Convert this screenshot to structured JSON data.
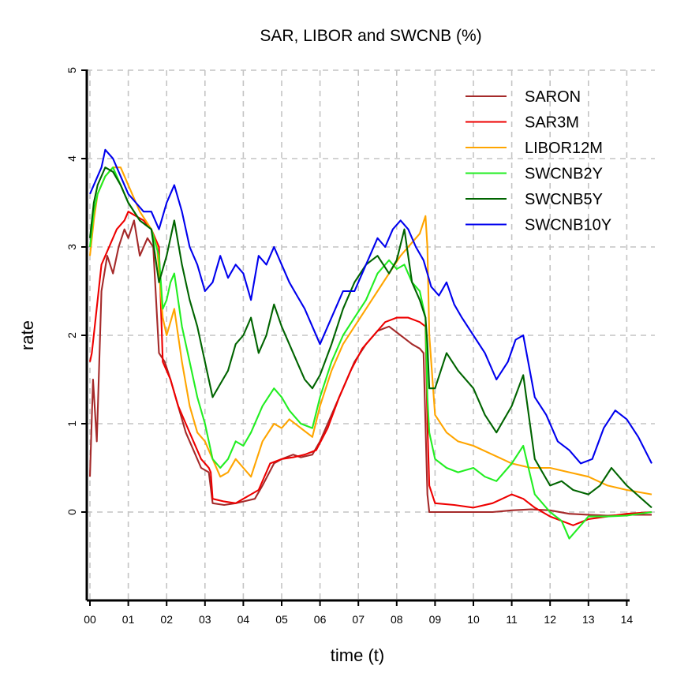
{
  "chart_data": {
    "type": "line",
    "title": "SAR, LIBOR and SWCNB (%)",
    "xlabel": "time (t)",
    "ylabel": "rate",
    "x_ticks": [
      "00",
      "01",
      "02",
      "03",
      "04",
      "05",
      "06",
      "07",
      "08",
      "09",
      "10",
      "11",
      "12",
      "13",
      "14"
    ],
    "y_ticks": [
      "0",
      "1",
      "2",
      "3",
      "4",
      "5"
    ],
    "xlim": [
      0,
      14.65
    ],
    "ylim": [
      -1,
      5
    ],
    "grid": true,
    "legend_position": "top-right",
    "series": [
      {
        "name": "SARON",
        "color": "#a52a2a",
        "x": [
          0,
          0.08,
          0.18,
          0.3,
          0.45,
          0.6,
          0.75,
          0.9,
          1.0,
          1.15,
          1.3,
          1.5,
          1.65,
          1.8,
          1.95,
          2.1,
          2.3,
          2.5,
          2.7,
          2.9,
          3.1,
          3.2,
          3.5,
          3.8,
          4.0,
          4.3,
          4.5,
          4.8,
          5.0,
          5.3,
          5.5,
          5.8,
          6.0,
          6.3,
          6.6,
          6.9,
          7.2,
          7.5,
          7.8,
          8.1,
          8.4,
          8.6,
          8.7,
          8.8,
          8.85,
          9.0,
          9.5,
          10.0,
          10.5,
          11.0,
          11.5,
          12.0,
          12.5,
          13.0,
          13.5,
          14.0,
          14.65
        ],
        "y": [
          0.4,
          1.5,
          0.8,
          2.5,
          2.9,
          2.7,
          3.0,
          3.2,
          3.1,
          3.3,
          2.9,
          3.1,
          3.0,
          1.8,
          1.7,
          1.5,
          1.2,
          0.9,
          0.7,
          0.5,
          0.45,
          0.1,
          0.08,
          0.1,
          0.12,
          0.15,
          0.3,
          0.55,
          0.6,
          0.65,
          0.62,
          0.65,
          0.8,
          1.1,
          1.4,
          1.7,
          1.9,
          2.05,
          2.1,
          2.0,
          1.9,
          1.85,
          1.8,
          0.2,
          0.0,
          0.0,
          0.0,
          0.0,
          0.0,
          0.02,
          0.03,
          0.02,
          -0.02,
          -0.03,
          -0.04,
          -0.03,
          -0.03
        ]
      },
      {
        "name": "SAR3M",
        "color": "#ee0000",
        "x": [
          0,
          0.05,
          0.15,
          0.3,
          0.5,
          0.7,
          0.9,
          1.0,
          1.2,
          1.4,
          1.6,
          1.7,
          1.8,
          1.9,
          2.1,
          2.3,
          2.5,
          2.7,
          2.9,
          3.1,
          3.15,
          3.2,
          3.5,
          3.8,
          4.0,
          4.2,
          4.4,
          4.7,
          5.0,
          5.3,
          5.6,
          5.9,
          6.2,
          6.5,
          6.8,
          7.1,
          7.4,
          7.7,
          8.0,
          8.3,
          8.6,
          8.75,
          8.8,
          8.85,
          9.0,
          9.5,
          10.0,
          10.5,
          11.0,
          11.3,
          11.6,
          12.0,
          12.3,
          12.6,
          13.0,
          13.5,
          14.0,
          14.65
        ],
        "y": [
          1.7,
          1.8,
          2.2,
          2.8,
          3.0,
          3.2,
          3.3,
          3.4,
          3.35,
          3.3,
          3.2,
          3.1,
          3.0,
          1.7,
          1.5,
          1.2,
          1.0,
          0.8,
          0.6,
          0.5,
          0.45,
          0.15,
          0.12,
          0.1,
          0.15,
          0.2,
          0.25,
          0.55,
          0.6,
          0.62,
          0.65,
          0.7,
          0.95,
          1.3,
          1.6,
          1.85,
          2.0,
          2.15,
          2.2,
          2.2,
          2.15,
          2.1,
          1.0,
          0.3,
          0.1,
          0.08,
          0.05,
          0.1,
          0.2,
          0.15,
          0.05,
          -0.05,
          -0.1,
          -0.15,
          -0.08,
          -0.05,
          -0.02,
          0.0
        ]
      },
      {
        "name": "LIBOR12M",
        "color": "#ffa500",
        "x": [
          0,
          0.1,
          0.2,
          0.4,
          0.6,
          0.8,
          1.0,
          1.3,
          1.6,
          1.75,
          1.9,
          2.0,
          2.2,
          2.4,
          2.6,
          2.8,
          3.0,
          3.2,
          3.4,
          3.6,
          3.8,
          4.0,
          4.2,
          4.5,
          4.8,
          5.0,
          5.2,
          5.5,
          5.8,
          6.0,
          6.3,
          6.6,
          6.9,
          7.2,
          7.5,
          7.8,
          8.1,
          8.4,
          8.6,
          8.75,
          8.8,
          8.85,
          9.0,
          9.3,
          9.6,
          10.0,
          10.5,
          11.0,
          11.5,
          12.0,
          12.5,
          13.0,
          13.5,
          14.0,
          14.65
        ],
        "y": [
          2.9,
          3.3,
          3.6,
          3.8,
          3.9,
          3.9,
          3.7,
          3.4,
          3.2,
          3.0,
          2.2,
          2.0,
          2.3,
          1.7,
          1.2,
          0.9,
          0.8,
          0.6,
          0.4,
          0.45,
          0.6,
          0.5,
          0.4,
          0.8,
          1.0,
          0.95,
          1.05,
          0.95,
          0.85,
          1.2,
          1.6,
          1.9,
          2.1,
          2.3,
          2.5,
          2.7,
          2.9,
          3.05,
          3.15,
          3.35,
          3.0,
          2.0,
          1.1,
          0.9,
          0.8,
          0.75,
          0.65,
          0.55,
          0.5,
          0.5,
          0.45,
          0.4,
          0.3,
          0.25,
          0.2
        ]
      },
      {
        "name": "SWCNB2Y",
        "color": "#22ee22",
        "x": [
          0,
          0.1,
          0.2,
          0.4,
          0.6,
          0.8,
          1.0,
          1.3,
          1.6,
          1.8,
          1.9,
          2.0,
          2.1,
          2.2,
          2.4,
          2.6,
          2.8,
          3.0,
          3.2,
          3.4,
          3.6,
          3.8,
          4.0,
          4.2,
          4.5,
          4.8,
          5.0,
          5.2,
          5.5,
          5.8,
          6.0,
          6.3,
          6.6,
          6.9,
          7.2,
          7.5,
          7.8,
          8.0,
          8.2,
          8.4,
          8.6,
          8.75,
          8.8,
          8.85,
          9.0,
          9.3,
          9.6,
          10.0,
          10.3,
          10.6,
          11.0,
          11.3,
          11.6,
          12.0,
          12.3,
          12.5,
          12.7,
          13.0,
          13.5,
          14.0,
          14.65
        ],
        "y": [
          3.0,
          3.4,
          3.6,
          3.8,
          3.9,
          3.7,
          3.5,
          3.3,
          3.2,
          2.9,
          2.3,
          2.4,
          2.6,
          2.7,
          2.1,
          1.7,
          1.3,
          1.0,
          0.6,
          0.5,
          0.6,
          0.8,
          0.75,
          0.9,
          1.2,
          1.4,
          1.3,
          1.15,
          1.0,
          0.95,
          1.3,
          1.7,
          2.0,
          2.2,
          2.4,
          2.7,
          2.85,
          2.75,
          2.8,
          2.6,
          2.5,
          2.2,
          1.3,
          0.9,
          0.6,
          0.5,
          0.45,
          0.5,
          0.4,
          0.35,
          0.55,
          0.75,
          0.2,
          0.0,
          -0.1,
          -0.3,
          -0.2,
          -0.05,
          -0.05,
          -0.04,
          0.0
        ]
      },
      {
        "name": "SWCNB5Y",
        "color": "#006400",
        "x": [
          0,
          0.1,
          0.2,
          0.4,
          0.6,
          0.8,
          1.0,
          1.3,
          1.6,
          1.8,
          2.0,
          2.2,
          2.4,
          2.6,
          2.8,
          3.0,
          3.2,
          3.4,
          3.6,
          3.8,
          4.0,
          4.2,
          4.4,
          4.6,
          4.8,
          5.0,
          5.2,
          5.4,
          5.6,
          5.8,
          6.0,
          6.3,
          6.6,
          6.9,
          7.2,
          7.5,
          7.8,
          8.0,
          8.2,
          8.4,
          8.6,
          8.75,
          8.8,
          8.85,
          9.0,
          9.3,
          9.6,
          10.0,
          10.3,
          10.6,
          11.0,
          11.3,
          11.6,
          12.0,
          12.3,
          12.6,
          13.0,
          13.3,
          13.6,
          14.0,
          14.65
        ],
        "y": [
          3.1,
          3.5,
          3.7,
          3.9,
          3.85,
          3.7,
          3.5,
          3.3,
          3.2,
          2.6,
          2.9,
          3.3,
          2.8,
          2.4,
          2.1,
          1.7,
          1.3,
          1.45,
          1.6,
          1.9,
          2.0,
          2.2,
          1.8,
          2.0,
          2.35,
          2.1,
          1.9,
          1.7,
          1.5,
          1.4,
          1.55,
          1.9,
          2.3,
          2.6,
          2.8,
          2.9,
          2.7,
          2.85,
          3.2,
          2.6,
          2.4,
          2.2,
          1.9,
          1.4,
          1.4,
          1.8,
          1.6,
          1.4,
          1.1,
          0.9,
          1.2,
          1.55,
          0.6,
          0.3,
          0.35,
          0.25,
          0.2,
          0.3,
          0.5,
          0.3,
          0.05
        ]
      },
      {
        "name": "SWCNB10Y",
        "color": "#0000ee",
        "x": [
          0,
          0.1,
          0.2,
          0.3,
          0.4,
          0.6,
          0.8,
          1.0,
          1.2,
          1.4,
          1.6,
          1.8,
          2.0,
          2.2,
          2.4,
          2.6,
          2.8,
          3.0,
          3.2,
          3.4,
          3.6,
          3.8,
          4.0,
          4.2,
          4.4,
          4.6,
          4.8,
          5.0,
          5.2,
          5.4,
          5.6,
          5.8,
          6.0,
          6.3,
          6.6,
          6.9,
          7.2,
          7.5,
          7.7,
          7.9,
          8.1,
          8.3,
          8.5,
          8.7,
          8.8,
          8.9,
          9.1,
          9.3,
          9.5,
          9.7,
          10.0,
          10.3,
          10.6,
          10.9,
          11.1,
          11.3,
          11.6,
          11.9,
          12.2,
          12.5,
          12.8,
          13.1,
          13.4,
          13.7,
          14.0,
          14.3,
          14.65
        ],
        "y": [
          3.6,
          3.7,
          3.8,
          3.9,
          4.1,
          4.0,
          3.8,
          3.6,
          3.5,
          3.4,
          3.4,
          3.2,
          3.5,
          3.7,
          3.4,
          3.0,
          2.8,
          2.5,
          2.6,
          2.9,
          2.65,
          2.8,
          2.7,
          2.4,
          2.9,
          2.8,
          3.0,
          2.8,
          2.6,
          2.45,
          2.3,
          2.1,
          1.9,
          2.2,
          2.5,
          2.5,
          2.8,
          3.1,
          3.0,
          3.2,
          3.3,
          3.2,
          3.0,
          2.85,
          2.7,
          2.55,
          2.45,
          2.6,
          2.35,
          2.2,
          2.0,
          1.8,
          1.5,
          1.7,
          1.95,
          2.0,
          1.3,
          1.1,
          0.8,
          0.7,
          0.55,
          0.6,
          0.95,
          1.15,
          1.05,
          0.85,
          0.55
        ]
      }
    ]
  }
}
